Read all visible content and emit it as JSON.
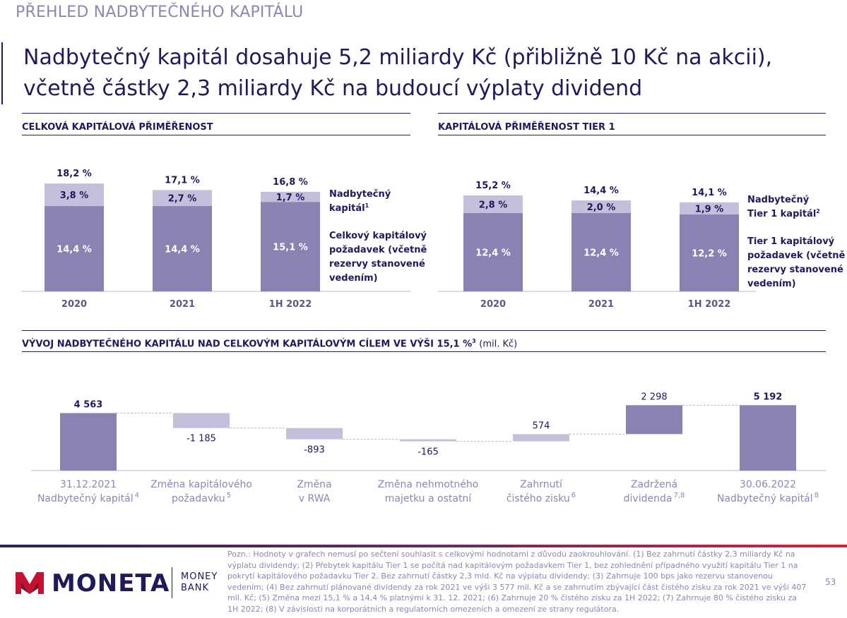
{
  "section_title": "PŘEHLED NADBYTEČNÉHO KAPITÁLU",
  "headline": "Nadbytečný kapitál dosahuje 5,2 miliardy Kč (přibližně 10 Kč na akcii), včetně částky 2,3 miliardy Kč na budoucí výplaty dividend",
  "colors": {
    "navy": "#1f1a5c",
    "bar_dark": "#8a83b1",
    "bar_light": "#c4c0db",
    "label_muted": "#8d86b3"
  },
  "panels": {
    "total_car_title": "CELKOVÁ KAPITÁLOVÁ PŘIMĚŘENOST",
    "tier1_title": "KAPITÁLOVÁ PŘIMĚŘENOST TIER 1",
    "waterfall_title": "VÝVOJ NADBYTEČNÉHO KAPITÁLU NAD CELKOVÝM KAPITÁLOVÝM CÍLEM VE VÝŠI 15,1 %",
    "waterfall_title_sup": "3",
    "waterfall_unit": "(mil. Kč)"
  },
  "chart_data": [
    {
      "type": "bar",
      "stacked": true,
      "title": "CELKOVÁ KAPITÁLOVÁ PŘIMĚŘENOST",
      "categories": [
        "2020",
        "2021",
        "1H 2022"
      ],
      "totals": [
        18.2,
        17.1,
        16.8
      ],
      "total_labels": [
        "18,2 %",
        "17,1 %",
        "16,8 %"
      ],
      "series": [
        {
          "name": "Celkový kapitálový požadavek (včetně rezervy stanovené vedením)",
          "values": [
            14.4,
            14.4,
            15.1
          ],
          "labels": [
            "14,4 %",
            "14,4 %",
            "15,1 %"
          ],
          "color": "#8a83b1"
        },
        {
          "name": "Nadbytečný kapitál",
          "name_sup": "1",
          "values": [
            3.8,
            2.7,
            1.7
          ],
          "labels": [
            "3,8 %",
            "2,7 %",
            "1,7 %"
          ],
          "color": "#c4c0db"
        }
      ],
      "legend_lines": {
        "surplus": [
          "Nadbytečný",
          "kapitál"
        ],
        "requirement": [
          "Celkový kapitálový",
          "požadavek (včetně",
          "rezervy stanovené",
          "vedením)"
        ]
      }
    },
    {
      "type": "bar",
      "stacked": true,
      "title": "KAPITÁLOVÁ PŘIMĚŘENOST TIER 1",
      "categories": [
        "2020",
        "2021",
        "1H 2022"
      ],
      "totals": [
        15.2,
        14.4,
        14.1
      ],
      "total_labels": [
        "15,2 %",
        "14,4 %",
        "14,1 %"
      ],
      "series": [
        {
          "name": "Tier 1 kapitálový požadavek (včetně rezervy stanovené vedením)",
          "values": [
            12.4,
            12.4,
            12.2
          ],
          "labels": [
            "12,4 %",
            "12,4 %",
            "12,2 %"
          ],
          "color": "#8a83b1"
        },
        {
          "name": "Nadbytečný Tier 1 kapitál",
          "name_sup": "2",
          "values": [
            2.8,
            2.0,
            1.9
          ],
          "labels": [
            "2,8 %",
            "2,0 %",
            "1,9 %"
          ],
          "color": "#c4c0db"
        }
      ],
      "legend_lines": {
        "surplus": [
          "Nadbytečný",
          "Tier 1 kapitál"
        ],
        "requirement": [
          "Tier 1 kapitálový",
          "požadavek (včetně",
          "rezervy stanovené",
          "vedením)"
        ]
      }
    },
    {
      "type": "waterfall",
      "title": "VÝVOJ NADBYTEČNÉHO KAPITÁLU NAD CELKOVÝM KAPITÁLOVÝM CÍLEM VE VÝŠI 15,1 %",
      "unit": "mil. Kč",
      "steps": [
        {
          "kind": "total",
          "value": 4563,
          "label": "4 563",
          "cat": [
            "31.12.2021",
            "Nadbytečný kapitál"
          ],
          "sup": "4"
        },
        {
          "kind": "delta",
          "value": -1185,
          "label": "-1 185",
          "cat": [
            "Změna kapitálového",
            "požadavku"
          ],
          "sup": "5"
        },
        {
          "kind": "delta",
          "value": -893,
          "label": "-893",
          "cat": [
            "Změna",
            "v RWA"
          ],
          "sup": ""
        },
        {
          "kind": "delta",
          "value": -165,
          "label": "-165",
          "cat": [
            "Změna nehmotného",
            "majetku a ostatní"
          ],
          "sup": ""
        },
        {
          "kind": "delta",
          "value": 574,
          "label": "574",
          "cat": [
            "Zahrnutí",
            "čistého zisku"
          ],
          "sup": "6"
        },
        {
          "kind": "delta",
          "value": 2298,
          "label": "2 298",
          "cat": [
            "Zadržená",
            "dividenda"
          ],
          "sup": "7,8"
        },
        {
          "kind": "total",
          "value": 5192,
          "label": "5 192",
          "cat": [
            "30.06.2022",
            "Nadbytečný kapitál"
          ],
          "sup": "8"
        }
      ]
    }
  ],
  "footer": {
    "logo_word": "MONETA",
    "logo_bank_line1": "MONEY",
    "logo_bank_line2": "BANK",
    "footnote": "Pozn.: Hodnoty v grafech nemusí po sečtení souhlasit s celkovými hodnotami z důvodu zaokrouhlování. (1) Bez zahrnutí částky 2,3 miliardy Kč na výplatu dividendy; (2) Přebytek kapitálu Tier 1 se počítá nad kapitálovým požadavkem Tier 1, bez zohlednění případného využití kapitálu Tier 1 na pokrytí kapitálového požadavku Tier 2. Bez zahrnutí částky 2,3 mld. Kč na výplatu dividendy; (3) Zahrnuje 100 bps jako rezervu stanovenou vedením; (4) Bez zahrnutí plánované dividendy za rok 2021 ve výši 3 577 mil. Kč a se zahrnutím zbývající část čistého zisku za rok 2021 ve výši 407 mil. Kč; (5) Změna mezi 15,1 % a 14,4 % platnými k 31. 12. 2021; (6) Zahrnuje 20 % čistého zisku za 1H 2022; (7) Zahrnuje 80 % čistého zisku za 1H 2022; (8) V závislosti na korporátních a regulatorních omezeních a omezení ze strany regulátora.",
    "page_number": "53"
  }
}
